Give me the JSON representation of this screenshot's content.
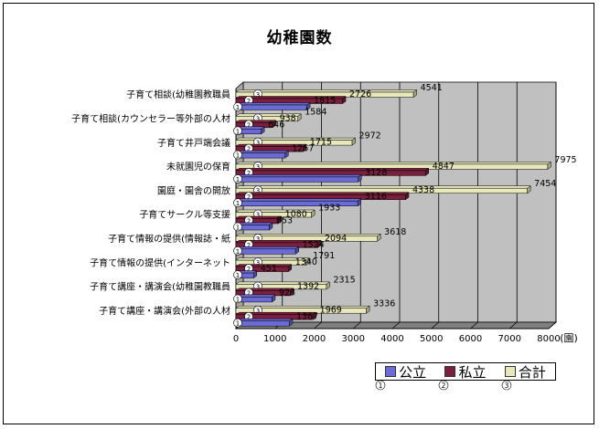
{
  "chart_data": {
    "type": "bar",
    "orientation": "horizontal",
    "title": "幼稚園数",
    "unit": "(園)",
    "categories": [
      "子育て相談(幼稚園教職員",
      "子育て相談(カウンセラー等外部の人材",
      "子育て井戸端会議",
      "未就園児の保育",
      "園庭・園舎の開放",
      "子育てサークル等支援",
      "子育て情報の提供(情報誌・紙",
      "子育て情報の提供(インターネット",
      "子育て講座・講演会(幼稚園教職員",
      "子育て講座・講演会(外部の人材"
    ],
    "series": [
      {
        "name": "公立",
        "marker": "①",
        "color": "#6b6bd6",
        "values": [
          1815,
          646,
          1257,
          3128,
          3116,
          853,
          1524,
          451,
          923,
          1367
        ]
      },
      {
        "name": "私立",
        "marker": "②",
        "color": "#7a1f3d",
        "values": [
          2726,
          938,
          1715,
          4847,
          4338,
          1080,
          2094,
          1340,
          1392,
          1969
        ]
      },
      {
        "name": "合計",
        "marker": "③",
        "color": "#e8e8bc",
        "values": [
          4541,
          1584,
          2972,
          7975,
          7454,
          1933,
          3618,
          1791,
          2315,
          3336
        ]
      }
    ],
    "xlim": [
      0,
      8000
    ],
    "xticks": [
      "0",
      "1000",
      "2000",
      "3000",
      "4000",
      "5000",
      "6000",
      "7000",
      "8000"
    ],
    "grid": true,
    "legend_position": "bottom-right"
  }
}
